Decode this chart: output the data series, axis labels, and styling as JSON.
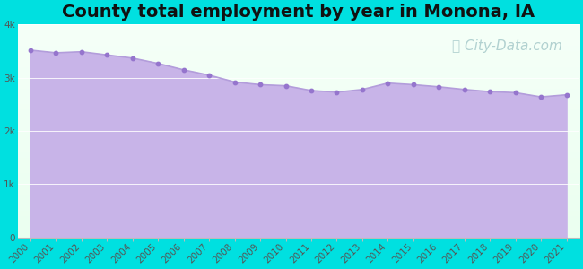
{
  "title": "County total employment by year in Monona, IA",
  "title_fontsize": 14,
  "title_fontweight": "bold",
  "background_color": "#00e0e0",
  "fill_color": "#c8b4e8",
  "line_color": "#b39ddb",
  "dot_color": "#9575cd",
  "dot_size": 10,
  "years": [
    2000,
    2001,
    2002,
    2003,
    2004,
    2005,
    2006,
    2007,
    2008,
    2009,
    2010,
    2011,
    2012,
    2013,
    2014,
    2015,
    2016,
    2017,
    2018,
    2019,
    2020,
    2021
  ],
  "values": [
    3520,
    3470,
    3490,
    3430,
    3370,
    3270,
    3150,
    3050,
    2920,
    2870,
    2850,
    2760,
    2730,
    2780,
    2900,
    2870,
    2830,
    2780,
    2740,
    2720,
    2640,
    2680
  ],
  "ylim": [
    0,
    4000
  ],
  "yticks": [
    0,
    1000,
    2000,
    3000,
    4000
  ],
  "ytick_labels": [
    "0",
    "1k",
    "2k",
    "3k",
    "4k"
  ],
  "watermark": "City-Data.com",
  "watermark_color": "#aacccc",
  "watermark_fontsize": 11,
  "tick_color": "#555555",
  "tick_fontsize": 7.5,
  "plot_bg_top": "#f5fff5",
  "plot_bg_bottom": "#eefff0"
}
